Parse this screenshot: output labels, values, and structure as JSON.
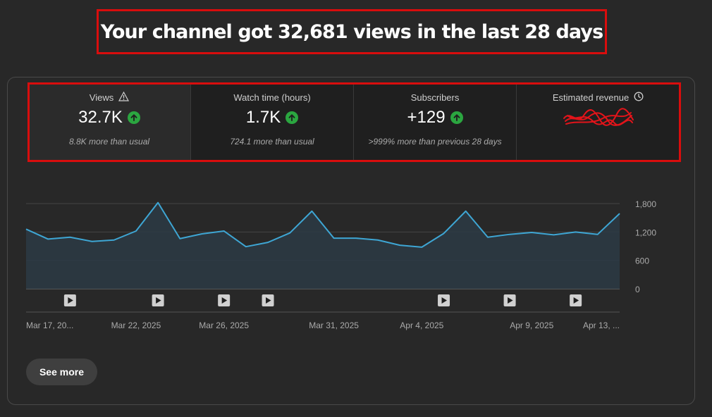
{
  "headline": "Your channel got 32,681 views in the last 28 days",
  "metrics": [
    {
      "label": "Views",
      "value": "32.7K",
      "note": "8.8K more than usual",
      "label_icon": "warning-icon",
      "trend_icon": "arrow-up-icon"
    },
    {
      "label": "Watch time (hours)",
      "value": "1.7K",
      "note": "724.1 more than usual",
      "trend_icon": "arrow-up-icon"
    },
    {
      "label": "Subscribers",
      "value": "+129",
      "note": ">999% more than previous 28 days",
      "trend_icon": "arrow-up-icon"
    },
    {
      "label": "Estimated revenue",
      "value": "",
      "note": "",
      "label_icon": "clock-icon",
      "value_redacted": true
    }
  ],
  "chart_data": {
    "type": "area",
    "series": [
      {
        "values": [
          1260,
          1050,
          1090,
          1000,
          1030,
          1220,
          1820,
          1060,
          1160,
          1220,
          890,
          980,
          1180,
          1640,
          1070,
          1070,
          1030,
          920,
          880,
          1170,
          1640,
          1090,
          1150,
          1190,
          1140,
          1200,
          1150,
          1590
        ]
      }
    ],
    "x_tick_labels": [
      "Mar 17, 20...",
      "Mar 22, 2025",
      "Mar 26, 2025",
      "Mar 31, 2025",
      "Apr 4, 2025",
      "Apr 9, 2025",
      "Apr 13, ..."
    ],
    "x_tick_indices": [
      0,
      5,
      9,
      14,
      18,
      23,
      27
    ],
    "y_ticks": [
      0,
      600,
      1200,
      1800
    ],
    "y_tick_labels": [
      "0",
      "600",
      "1,200",
      "1,800"
    ],
    "ylim": [
      0,
      1800
    ],
    "video_markers_at_index": [
      2,
      6,
      9,
      11,
      19,
      22,
      25
    ],
    "colors": {
      "line": "#3ea6d4",
      "fill": "#2b3a44",
      "grid": "#444444"
    }
  },
  "see_more_label": "See more"
}
